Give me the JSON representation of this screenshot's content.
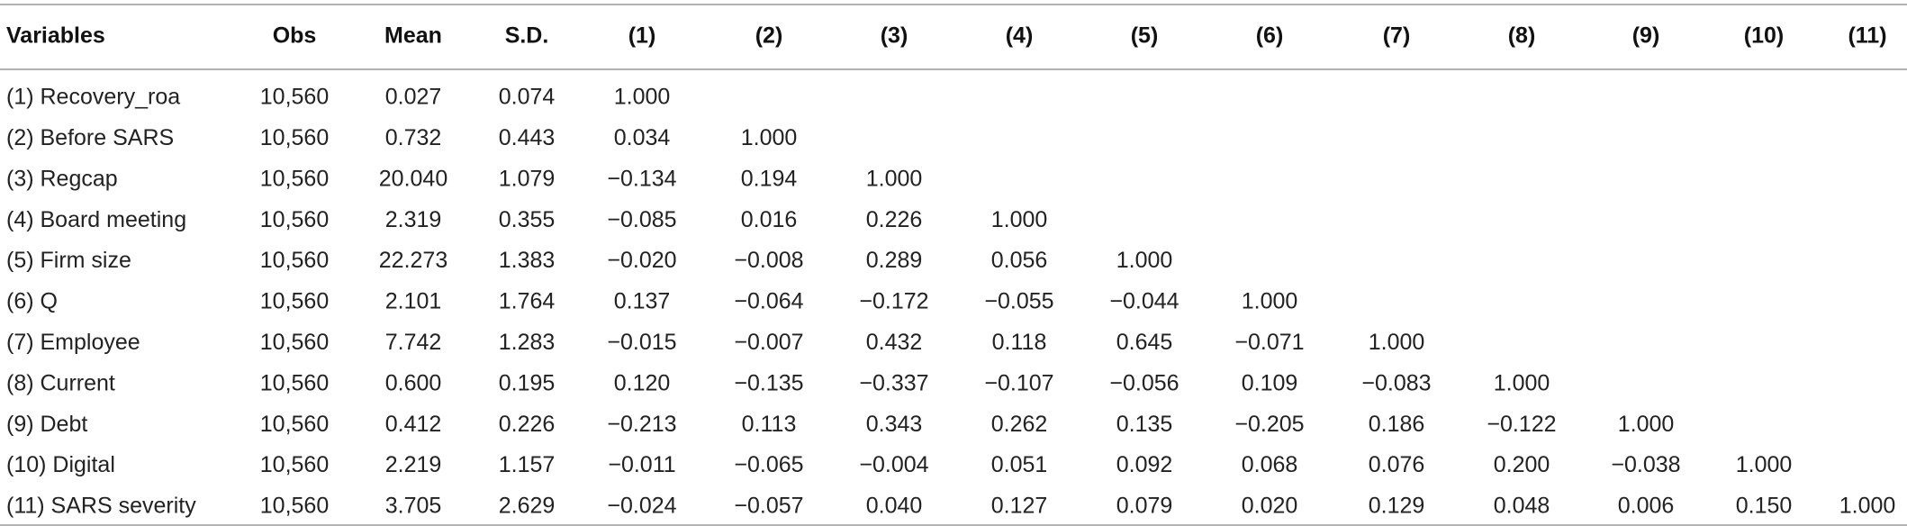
{
  "table": {
    "headers": [
      "Variables",
      "Obs",
      "Mean",
      "S.D.",
      "(1)",
      "(2)",
      "(3)",
      "(4)",
      "(5)",
      "(6)",
      "(7)",
      "(8)",
      "(9)",
      "(10)",
      "(11)"
    ],
    "rows": [
      [
        "(1) Recovery_roa",
        "10,560",
        "0.027",
        "0.074",
        "1.000"
      ],
      [
        "(2) Before SARS",
        "10,560",
        "0.732",
        "0.443",
        "0.034",
        "1.000"
      ],
      [
        "(3) Regcap",
        "10,560",
        "20.040",
        "1.079",
        "−0.134",
        "0.194",
        "1.000"
      ],
      [
        "(4) Board meeting",
        "10,560",
        "2.319",
        "0.355",
        "−0.085",
        "0.016",
        "0.226",
        "1.000"
      ],
      [
        "(5) Firm size",
        "10,560",
        "22.273",
        "1.383",
        "−0.020",
        "−0.008",
        "0.289",
        "0.056",
        "1.000"
      ],
      [
        "(6) Q",
        "10,560",
        "2.101",
        "1.764",
        "0.137",
        "−0.064",
        "−0.172",
        "−0.055",
        "−0.044",
        "1.000"
      ],
      [
        "(7) Employee",
        "10,560",
        "7.742",
        "1.283",
        "−0.015",
        "−0.007",
        "0.432",
        "0.118",
        "0.645",
        "−0.071",
        "1.000"
      ],
      [
        "(8) Current",
        "10,560",
        "0.600",
        "0.195",
        "0.120",
        "−0.135",
        "−0.337",
        "−0.107",
        "−0.056",
        "0.109",
        "−0.083",
        "1.000"
      ],
      [
        "(9) Debt",
        "10,560",
        "0.412",
        "0.226",
        "−0.213",
        "0.113",
        "0.343",
        "0.262",
        "0.135",
        "−0.205",
        "0.186",
        "−0.122",
        "1.000"
      ],
      [
        "(10) Digital",
        "10,560",
        "2.219",
        "1.157",
        "−0.011",
        "−0.065",
        "−0.004",
        "0.051",
        "0.092",
        "0.068",
        "0.076",
        "0.200",
        "−0.038",
        "1.000"
      ],
      [
        "(11) SARS severity",
        "10,560",
        "3.705",
        "2.629",
        "−0.024",
        "−0.057",
        "0.040",
        "0.127",
        "0.079",
        "0.020",
        "0.129",
        "0.048",
        "0.006",
        "0.150",
        "1.000"
      ]
    ]
  }
}
